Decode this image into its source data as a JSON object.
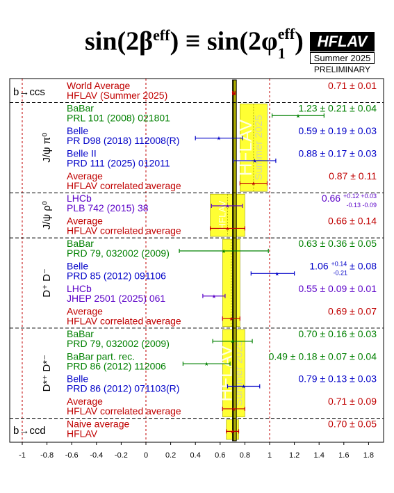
{
  "header": {
    "title_main": "sin(2β",
    "title_sup1": "eff",
    "title_mid": ") ≡ sin(2φ",
    "title_sub2": "1",
    "title_sup2": "eff",
    "title_end": ")",
    "badge": "HFLAV",
    "badge_sub": "Summer 2025",
    "preliminary": "PRELIMINARY"
  },
  "colors": {
    "red": "#c00000",
    "green": "#008000",
    "blue": "#0000c8",
    "purple": "#5a00c8",
    "band": "#ffff33",
    "bandEdge": "#999900"
  },
  "chart_data": {
    "type": "forest",
    "xlim": [
      -1.1,
      1.9
    ],
    "x_ticks": [
      -1,
      -0.8,
      -0.6,
      -0.4,
      -0.2,
      0,
      0.2,
      0.4,
      0.6,
      0.8,
      1,
      1.2,
      1.4,
      1.6,
      1.8
    ],
    "x_tick_labels": [
      "-1",
      "-0.8",
      "-0.6",
      "-0.4",
      "-0.2",
      "0",
      "0.2",
      "0.4",
      "0.6",
      "0.8",
      "1",
      "1.2",
      "1.4",
      "1.6",
      "1.8"
    ],
    "world_average": {
      "value": 0.71,
      "error": 0.01
    },
    "band_watermark": "HFLAV",
    "band_watermark_sub": "Summer 2025",
    "groups": [
      {
        "label": "b→ccs",
        "average_band": null,
        "entries": [
          {
            "label1": "World Average",
            "label2": "HFLAV (Summer 2025)",
            "color": "red",
            "value": 0.71,
            "lo": 0.7,
            "hi": 0.72,
            "result": "0.71 ± 0.01",
            "res_sup": "",
            "res_sub": "",
            "res_tail": ""
          }
        ]
      },
      {
        "label": "J/ψ π⁰",
        "average_band": {
          "center": 0.87,
          "err": 0.11
        },
        "entries": [
          {
            "label1": "BaBar",
            "label2": "PRL 101 (2008) 021801",
            "color": "green",
            "value": 1.23,
            "lo": 1.02,
            "hi": 1.44,
            "result": "1.23 ± 0.21 ± 0.04",
            "res_sup": "",
            "res_sub": "",
            "res_tail": ""
          },
          {
            "label1": "Belle",
            "label2": "PR D98 (2018) 112008(R)",
            "color": "blue",
            "value": 0.59,
            "lo": 0.4,
            "hi": 0.78,
            "result": "0.59 ± 0.19 ± 0.03",
            "res_sup": "",
            "res_sub": "",
            "res_tail": ""
          },
          {
            "label1": "Belle II",
            "label2": "PRD 111 (2025) 012011",
            "color": "blue",
            "value": 0.88,
            "lo": 0.71,
            "hi": 1.05,
            "result": "0.88 ± 0.17 ± 0.03",
            "res_sup": "",
            "res_sub": "",
            "res_tail": ""
          },
          {
            "label1": "Average",
            "label2": "HFLAV correlated average",
            "color": "red",
            "value": 0.87,
            "lo": 0.76,
            "hi": 0.98,
            "result": "0.87 ± 0.11",
            "res_sup": "",
            "res_sub": "",
            "res_tail": ""
          }
        ]
      },
      {
        "label": "J/ψ ρ⁰",
        "average_band": {
          "center": 0.66,
          "err": 0.14
        },
        "entries": [
          {
            "label1": "LHCb",
            "label2": "PLB 742 (2015) 38",
            "color": "purple",
            "value": 0.66,
            "lo": 0.53,
            "hi": 0.78,
            "result": "0.66",
            "res_sup": "+0.12 +0.03",
            "res_sub": "-0.13 -0.09",
            "res_tail": ""
          },
          {
            "label1": "Average",
            "label2": "HFLAV correlated average",
            "color": "red",
            "value": 0.66,
            "lo": 0.52,
            "hi": 0.8,
            "result": "0.66 ± 0.14",
            "res_sup": "",
            "res_sub": "",
            "res_tail": ""
          }
        ]
      },
      {
        "label": "D⁺ D⁻",
        "average_band": {
          "center": 0.69,
          "err": 0.07
        },
        "entries": [
          {
            "label1": "BaBar",
            "label2": "PRD 79, 032002 (2009)",
            "color": "green",
            "value": 0.63,
            "lo": 0.27,
            "hi": 0.99,
            "result": "0.63 ± 0.36 ± 0.05",
            "res_sup": "",
            "res_sub": "",
            "res_tail": ""
          },
          {
            "label1": "Belle",
            "label2": "PRD 85 (2012) 091106",
            "color": "blue",
            "value": 1.06,
            "lo": 0.85,
            "hi": 1.2,
            "result": "1.06",
            "res_sup": "+0.14",
            "res_sub": "-0.21",
            "res_tail": "± 0.08"
          },
          {
            "label1": "LHCb",
            "label2": "JHEP 2501 (2025) 061",
            "color": "purple",
            "value": 0.55,
            "lo": 0.46,
            "hi": 0.64,
            "result": "0.55 ± 0.09 ± 0.01",
            "res_sup": "",
            "res_sub": "",
            "res_tail": ""
          },
          {
            "label1": "Average",
            "label2": "HFLAV correlated average",
            "color": "red",
            "value": 0.69,
            "lo": 0.62,
            "hi": 0.76,
            "result": "0.69 ± 0.07",
            "res_sup": "",
            "res_sub": "",
            "res_tail": ""
          }
        ]
      },
      {
        "label": "D*⁺ D*⁻",
        "average_band": {
          "center": 0.71,
          "err": 0.09
        },
        "entries": [
          {
            "label1": "BaBar",
            "label2": "PRD 79, 032002 (2009)",
            "color": "green",
            "value": 0.7,
            "lo": 0.54,
            "hi": 0.86,
            "result": "0.70 ± 0.16 ± 0.03",
            "res_sup": "",
            "res_sub": "",
            "res_tail": ""
          },
          {
            "label1": "BaBar part. rec.",
            "label2": "PRD 86 (2012) 112006",
            "color": "green",
            "value": 0.49,
            "lo": 0.3,
            "hi": 0.68,
            "result": "0.49 ± 0.18 ± 0.07 ± 0.04",
            "res_sup": "",
            "res_sub": "",
            "res_tail": ""
          },
          {
            "label1": "Belle",
            "label2": "PRD 86 (2012) 071103(R)",
            "color": "blue",
            "value": 0.79,
            "lo": 0.66,
            "hi": 0.92,
            "result": "0.79 ± 0.13 ± 0.03",
            "res_sup": "",
            "res_sub": "",
            "res_tail": ""
          },
          {
            "label1": "Average",
            "label2": "HFLAV correlated average",
            "color": "red",
            "value": 0.71,
            "lo": 0.62,
            "hi": 0.8,
            "result": "0.71 ± 0.09",
            "res_sup": "",
            "res_sub": "",
            "res_tail": ""
          }
        ]
      },
      {
        "label": "b→ccd",
        "average_band": {
          "center": 0.7,
          "err": 0.05
        },
        "entries": [
          {
            "label1": "Naive average",
            "label2": "HFLAV",
            "color": "red",
            "value": 0.7,
            "lo": 0.65,
            "hi": 0.75,
            "result": "0.70 ± 0.05",
            "res_sup": "",
            "res_sub": "",
            "res_tail": ""
          }
        ]
      }
    ]
  }
}
